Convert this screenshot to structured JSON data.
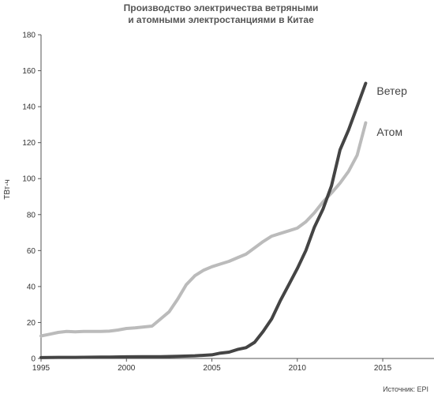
{
  "chart_data": {
    "type": "line",
    "title_lines": [
      "Производство электричества ветряными",
      "и атомными электростанциями в Китае"
    ],
    "ylabel": "ТВт-ч",
    "xlabel": "",
    "source": "Источник: EPI",
    "xlim": [
      1995,
      2018
    ],
    "ylim": [
      0,
      180
    ],
    "x_ticks": [
      1995,
      2000,
      2005,
      2010,
      2015
    ],
    "y_ticks": [
      0,
      20,
      40,
      60,
      80,
      100,
      120,
      140,
      160,
      180
    ],
    "grid": {
      "horizontal": false,
      "vertical": false
    },
    "series": [
      {
        "name": "Ветер",
        "color": "#444444",
        "points": [
          [
            1995,
            0.5
          ],
          [
            1996,
            0.6
          ],
          [
            1997,
            0.6
          ],
          [
            1998,
            0.7
          ],
          [
            1999,
            0.8
          ],
          [
            2000,
            0.9
          ],
          [
            2001,
            1.0
          ],
          [
            2002,
            1.0
          ],
          [
            2003,
            1.2
          ],
          [
            2004,
            1.5
          ],
          [
            2005,
            2.0
          ],
          [
            2005.5,
            3.0
          ],
          [
            2006,
            3.5
          ],
          [
            2006.5,
            5.0
          ],
          [
            2007,
            6.0
          ],
          [
            2007.5,
            9.0
          ],
          [
            2008,
            15.0
          ],
          [
            2008.5,
            22.0
          ],
          [
            2009,
            32.0
          ],
          [
            2009.5,
            41.0
          ],
          [
            2010,
            50.0
          ],
          [
            2010.5,
            60.0
          ],
          [
            2011,
            73.0
          ],
          [
            2011.5,
            83.0
          ],
          [
            2012,
            96.0
          ],
          [
            2012.5,
            116.0
          ],
          [
            2013,
            127.0
          ],
          [
            2013.5,
            140.0
          ],
          [
            2014,
            153.0
          ]
        ]
      },
      {
        "name": "Атом",
        "color": "#bbbbbb",
        "points": [
          [
            1995,
            12.5
          ],
          [
            1995.5,
            13.5
          ],
          [
            1996,
            14.5
          ],
          [
            1996.5,
            15.0
          ],
          [
            1997,
            14.8
          ],
          [
            1997.5,
            15.0
          ],
          [
            1998,
            15.0
          ],
          [
            1998.5,
            15.0
          ],
          [
            1999,
            15.2
          ],
          [
            1999.5,
            15.8
          ],
          [
            2000,
            16.7
          ],
          [
            2000.5,
            17.0
          ],
          [
            2001,
            17.5
          ],
          [
            2001.5,
            18.0
          ],
          [
            2002,
            22.0
          ],
          [
            2002.5,
            26.0
          ],
          [
            2003,
            33.0
          ],
          [
            2003.5,
            41.0
          ],
          [
            2004,
            46.0
          ],
          [
            2004.5,
            49.0
          ],
          [
            2005,
            51.0
          ],
          [
            2005.5,
            52.5
          ],
          [
            2006,
            54.0
          ],
          [
            2006.5,
            56.0
          ],
          [
            2007,
            58.0
          ],
          [
            2007.5,
            61.5
          ],
          [
            2008,
            65.0
          ],
          [
            2008.5,
            68.0
          ],
          [
            2009,
            69.5
          ],
          [
            2009.5,
            71.0
          ],
          [
            2010,
            72.5
          ],
          [
            2010.5,
            76.0
          ],
          [
            2011,
            81.0
          ],
          [
            2011.5,
            87.0
          ],
          [
            2012,
            92.0
          ],
          [
            2012.5,
            97.5
          ],
          [
            2013,
            104.0
          ],
          [
            2013.5,
            113.0
          ],
          [
            2014,
            131.0
          ]
        ]
      }
    ]
  }
}
